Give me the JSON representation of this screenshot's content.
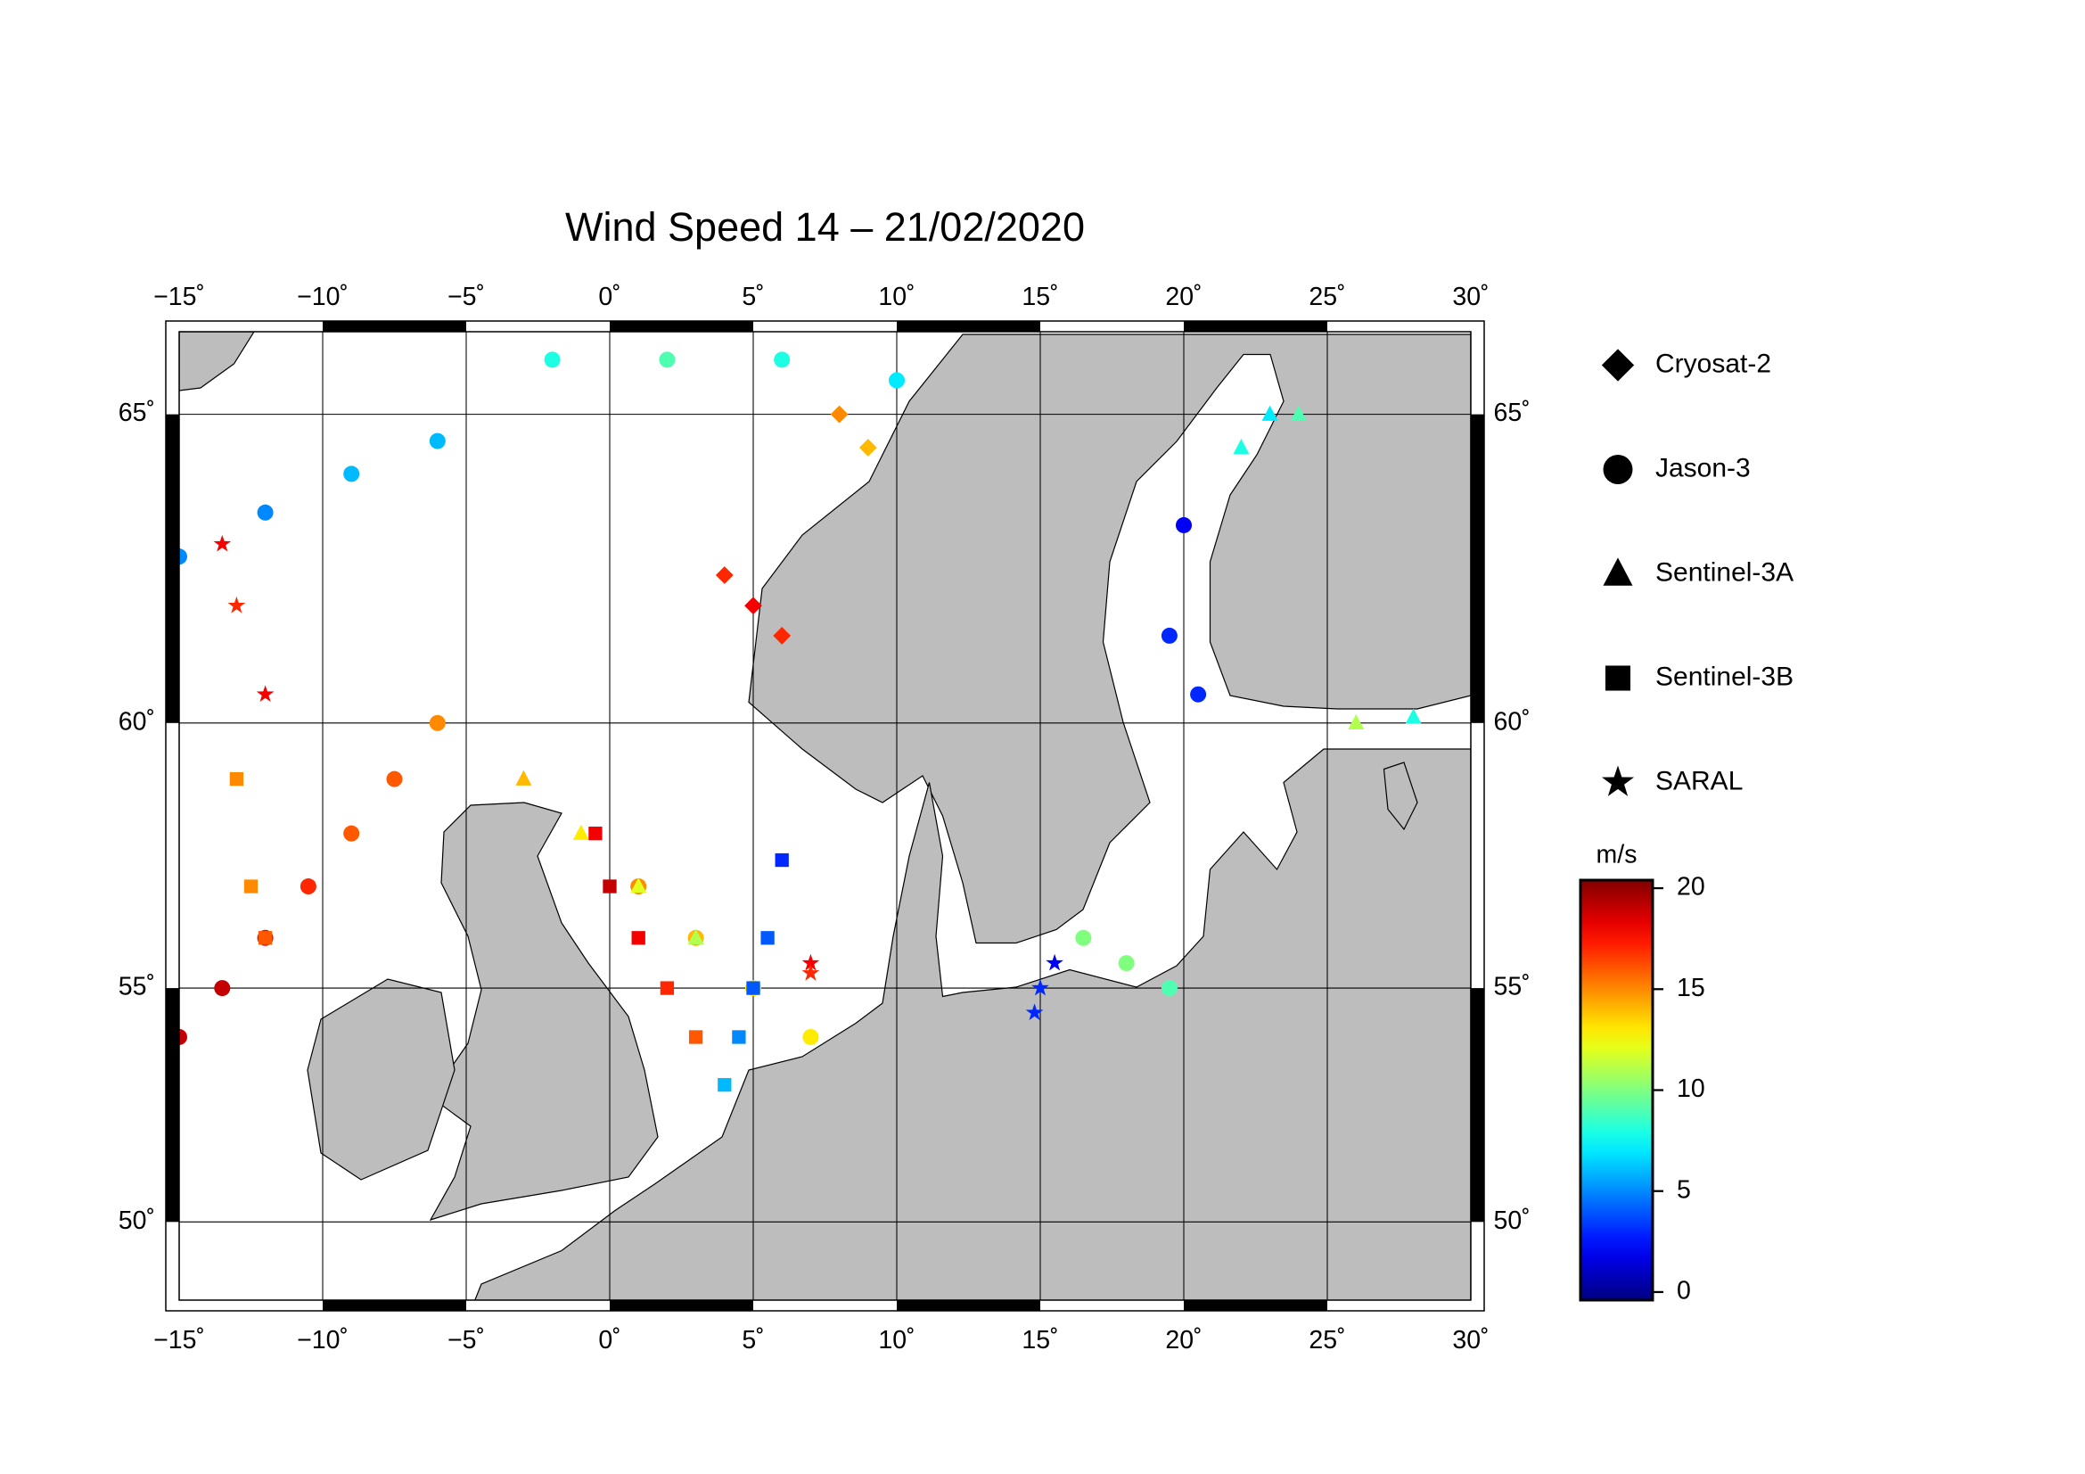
{
  "chart_data": {
    "type": "scatter",
    "title": "Wind Speed 14 – 21/02/2020",
    "projection": "mercator",
    "grid": true,
    "xlim": [
      -15,
      30
    ],
    "ylim": [
      48.2,
      66.2
    ],
    "xticks": [
      {
        "value": -15,
        "label": "−15˚"
      },
      {
        "value": -10,
        "label": "−10˚"
      },
      {
        "value": -5,
        "label": "−5˚"
      },
      {
        "value": 0,
        "label": "0˚"
      },
      {
        "value": 5,
        "label": "5˚"
      },
      {
        "value": 10,
        "label": "10˚"
      },
      {
        "value": 15,
        "label": "15˚"
      },
      {
        "value": 20,
        "label": "20˚"
      },
      {
        "value": 25,
        "label": "25˚"
      },
      {
        "value": 30,
        "label": "30˚"
      }
    ],
    "yticks": [
      {
        "value": 50,
        "label": "50˚"
      },
      {
        "value": 55,
        "label": "55˚"
      },
      {
        "value": 60,
        "label": "60˚"
      },
      {
        "value": 65,
        "label": "65˚"
      }
    ],
    "colorbar": {
      "label": "m/s",
      "colormap": "jet",
      "lim": [
        -0.4,
        20.4
      ],
      "ticks": [
        0,
        5,
        10,
        15,
        20
      ]
    },
    "series": [
      {
        "name": "Cryosat-2",
        "marker": "diamond",
        "x": [
          4,
          5,
          6,
          8,
          9
        ],
        "y": [
          62.5,
          62,
          61.5,
          65,
          64.5
        ],
        "values": [
          17,
          18,
          17,
          15,
          14
        ]
      },
      {
        "name": "Jason-3",
        "marker": "circle",
        "x": [
          -15,
          -13.5,
          -12,
          -10.5,
          -9,
          -7.5,
          -6,
          -15,
          -12,
          -9,
          -6,
          1,
          3,
          5,
          7,
          20,
          19.5,
          20.5,
          16.5,
          18,
          19.5,
          -2,
          2,
          6,
          10
        ],
        "y": [
          54,
          55,
          56,
          57,
          58,
          59,
          60,
          62.8,
          63.5,
          64.1,
          64.6,
          57,
          56,
          55,
          54,
          63.3,
          61.5,
          60.5,
          56,
          55.5,
          55,
          65.8,
          65.8,
          65.8,
          65.5
        ],
        "values": [
          19,
          19,
          18,
          17,
          16,
          16,
          15,
          5,
          5,
          6,
          6,
          15,
          14,
          13,
          13,
          2,
          3,
          3,
          10,
          10,
          9,
          8,
          9,
          8,
          7
        ]
      },
      {
        "name": "Sentinel-3A",
        "marker": "triangle",
        "x": [
          -3,
          -1,
          1,
          3,
          22,
          23,
          24,
          26,
          28
        ],
        "y": [
          59,
          58,
          57,
          56,
          64.5,
          65,
          65,
          60,
          60.1
        ],
        "values": [
          14,
          13,
          12,
          11,
          8,
          7,
          9,
          11,
          8
        ]
      },
      {
        "name": "Sentinel-3B",
        "marker": "square",
        "x": [
          -0.5,
          0,
          1,
          2,
          3,
          6,
          5.5,
          5,
          4.5,
          4,
          -13,
          -12.5,
          -12
        ],
        "y": [
          58,
          57,
          56,
          55,
          54,
          57.5,
          56,
          55,
          54,
          53,
          59,
          57,
          56
        ],
        "values": [
          18,
          19,
          18,
          17,
          16,
          3,
          4,
          4,
          5,
          6,
          15,
          15,
          16
        ]
      },
      {
        "name": "SARAL",
        "marker": "star",
        "x": [
          15.5,
          15,
          14.8,
          -13.5,
          -13,
          -12,
          7,
          7
        ],
        "y": [
          55.5,
          55,
          54.5,
          63,
          62,
          60.5,
          55.5,
          55.3
        ],
        "values": [
          2,
          3,
          3,
          18,
          17,
          18,
          18,
          17
        ]
      }
    ]
  }
}
